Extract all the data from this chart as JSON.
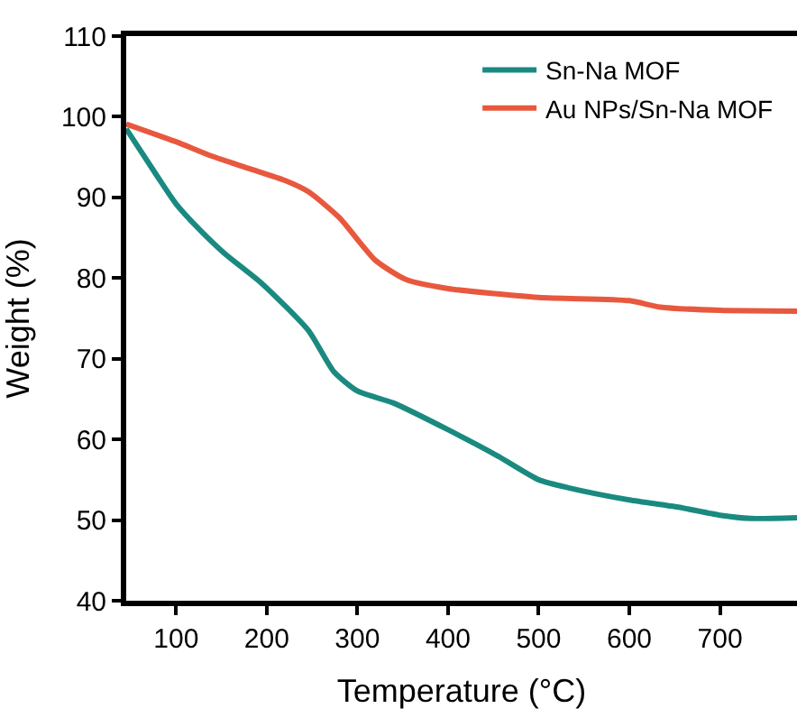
{
  "chart_data": {
    "type": "line",
    "xlabel": "Temperature (°C)",
    "ylabel": "Weight (%)",
    "xlim": [
      45,
      785
    ],
    "xticks": [
      100,
      200,
      300,
      400,
      500,
      600,
      700
    ],
    "ylim": [
      40,
      110
    ],
    "yticks": [
      40,
      50,
      60,
      70,
      80,
      90,
      100,
      110
    ],
    "legend": "top right",
    "marker": "none",
    "line_style": "solid",
    "series": [
      {
        "name": "Sn-Na MOF",
        "color": "#1a8a80",
        "x": [
          45,
          80,
          100,
          126,
          154,
          194,
          246,
          274,
          300,
          340,
          400,
          454,
          500,
          533,
          600,
          654,
          700,
          734,
          785
        ],
        "values": [
          98.5,
          92.5,
          89.2,
          86,
          83,
          79.4,
          73.5,
          68.4,
          66,
          64.5,
          61.2,
          58,
          55,
          54,
          52.5,
          51.6,
          50.6,
          50.2,
          50.3
        ]
      },
      {
        "name": "Au NPs/Sn-Na MOF",
        "color": "#e8583e",
        "x": [
          45,
          100,
          140,
          180,
          220,
          246,
          280,
          320,
          354,
          400,
          500,
          600,
          634,
          700,
          785
        ],
        "values": [
          99.1,
          96.9,
          95.1,
          93.6,
          92.1,
          90.7,
          87.5,
          82.2,
          79.8,
          78.7,
          77.6,
          77.2,
          76.4,
          76.0,
          75.9
        ]
      }
    ]
  }
}
